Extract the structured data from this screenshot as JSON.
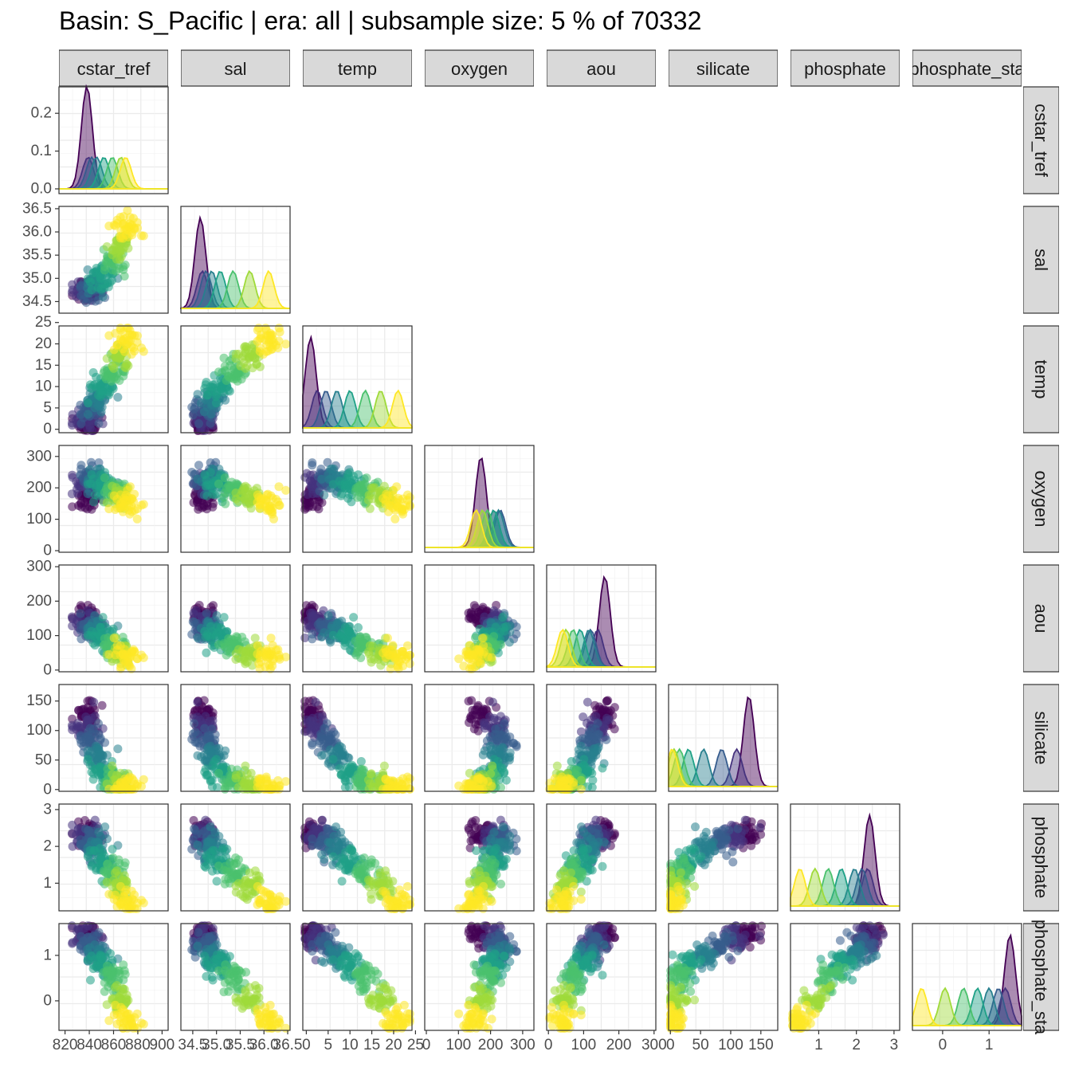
{
  "title": "Basin: S_Pacific | era: all | subsample size: 5 % of 70332",
  "chart_data": {
    "type": "scatter",
    "layout": "pairs-matrix",
    "variables": [
      "cstar_tref",
      "sal",
      "temp",
      "oxygen",
      "aou",
      "silicate",
      "phosphate",
      "phosphate_star"
    ],
    "strip_labels": [
      "cstar_tref",
      "sal",
      "temp",
      "oxygen",
      "aou",
      "silicate",
      "phosphate",
      "phosphate_sta"
    ],
    "row_strip_labels": [
      "cstar_tref",
      "sal",
      "temp",
      "oxygen",
      "aou",
      "silicate",
      "phosphate",
      "phosphate_sta"
    ],
    "ranges": {
      "cstar_tref": [
        815,
        905
      ],
      "sal": [
        34.25,
        36.55
      ],
      "temp": [
        -0.8,
        24.2
      ],
      "oxygen": [
        -5,
        335
      ],
      "aou": [
        -5,
        305
      ],
      "silicate": [
        -3,
        178
      ],
      "phosphate": [
        0.25,
        3.15
      ],
      "phosphate_star": [
        -0.65,
        1.7
      ]
    },
    "y_ticks": {
      "sal": [
        "34.5",
        "35.0",
        "35.5",
        "36.0",
        "36.5"
      ],
      "temp": [
        "0",
        "5",
        "10",
        "15",
        "20",
        "25"
      ],
      "oxygen": [
        "0",
        "100",
        "200",
        "300"
      ],
      "aou": [
        "0",
        "100",
        "200",
        "300"
      ],
      "silicate": [
        "0",
        "50",
        "100",
        "150"
      ],
      "phosphate": [
        "1",
        "2",
        "3"
      ],
      "phosphate_star": [
        "0",
        "1"
      ]
    },
    "x_ticks": {
      "cstar_tref": [
        "820",
        "840",
        "860",
        "880",
        "900"
      ],
      "sal": [
        "34.5",
        "35.0",
        "35.5",
        "36.0",
        "36.5"
      ],
      "temp": [
        "0",
        "5",
        "10",
        "15",
        "20",
        "25"
      ],
      "oxygen": [
        "0",
        "100",
        "200",
        "300"
      ],
      "aou": [
        "0",
        "100",
        "200",
        "300"
      ],
      "silicate": [
        "0",
        "50",
        "100",
        "150"
      ],
      "phosphate": [
        "1",
        "2",
        "3"
      ],
      "phosphate_star": [
        "0",
        "1"
      ]
    },
    "density_ticks": {
      "values": [
        0.0,
        0.1,
        0.2
      ],
      "labels": [
        "0.0",
        "0.1",
        "0.2"
      ],
      "ymax": 0.27
    },
    "color_groups": [
      "#440154",
      "#46337E",
      "#365C8D",
      "#277F8E",
      "#1FA187",
      "#4AC16D",
      "#9FDA3A",
      "#FDE725"
    ],
    "group_profiles": {
      "cstar_tref": [
        838,
        839,
        842,
        846,
        852,
        859,
        866,
        870
      ],
      "sal": [
        34.66,
        34.7,
        34.78,
        34.9,
        35.08,
        35.35,
        35.7,
        36.1
      ],
      "temp": [
        1.0,
        2.5,
        4.5,
        7.0,
        10.0,
        13.5,
        17.0,
        21.0
      ],
      "oxygen": [
        170,
        210,
        230,
        225,
        210,
        190,
        175,
        155
      ],
      "aou": [
        160,
        140,
        120,
        115,
        90,
        70,
        50,
        40
      ],
      "silicate": [
        130,
        110,
        85,
        55,
        30,
        15,
        6,
        3
      ],
      "phosphate": [
        2.35,
        2.3,
        2.15,
        1.95,
        1.6,
        1.25,
        0.9,
        0.5
      ],
      "phosphate_star": [
        1.45,
        1.35,
        1.2,
        1.0,
        0.75,
        0.45,
        0.05,
        -0.45
      ]
    },
    "point_alpha": 0.55,
    "grid": true,
    "legend": "none"
  }
}
